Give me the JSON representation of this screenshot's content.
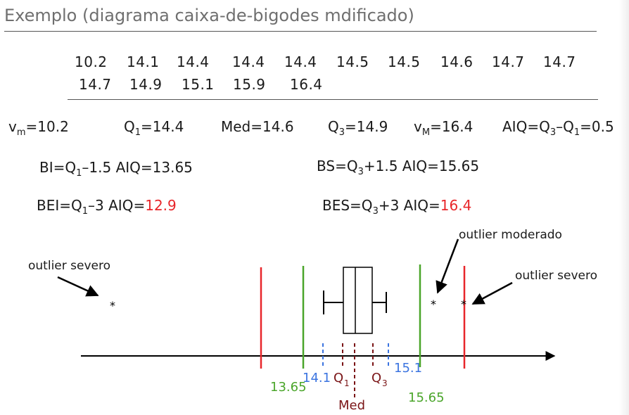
{
  "title": "Exemplo (diagrama caixa-de-bigodes mdificado)",
  "data_values": {
    "row1": [
      "10.2",
      "14.1",
      "14.4",
      "14.4",
      "14.4",
      "14.5",
      "14.5",
      "14.6",
      "14.7",
      "14.7"
    ],
    "row2": [
      "14.7",
      "14.9",
      "15.1",
      "15.9",
      "16.4"
    ]
  },
  "stats": {
    "vm": "=10.2",
    "q1": "=14.4",
    "med": "Med=14.6",
    "q3": "=14.9",
    "vM": "=16.4",
    "aiq": "AIQ=Q",
    "aiq_mid": "–Q",
    "aiq_end": "=0.5"
  },
  "fences": {
    "bi_pre": "BI=Q",
    "bi_post": "–1.5 AIQ=13.65",
    "bs_pre": "BS=Q",
    "bs_post": "+1.5 AIQ=15.65",
    "bei_pre": "BEI=Q",
    "bei_mid": "–3 AIQ=",
    "bei_val": "12.9",
    "bes_pre": "BES=Q",
    "bes_mid": "+3 AIQ=",
    "bes_val": "16.4"
  },
  "annotations": {
    "outlier_left": "outlier severo",
    "outlier_mid": "outlier moderado",
    "outlier_right": "outlier severo",
    "star": "*"
  },
  "axis_labels": {
    "bi": "13.65",
    "bs": "15.65",
    "whisker_low": "14.1",
    "whisker_high": "15.1",
    "q1": "Q",
    "q3": "Q",
    "med": "Med",
    "sub1": "1",
    "sub3": "3"
  },
  "colors": {
    "extreme_fence": "#e8262a",
    "inner_fence": "#4aa52a",
    "whisker_ticks": "#3b74e0",
    "quartiles": "#7a1416",
    "axis": "#000000"
  }
}
